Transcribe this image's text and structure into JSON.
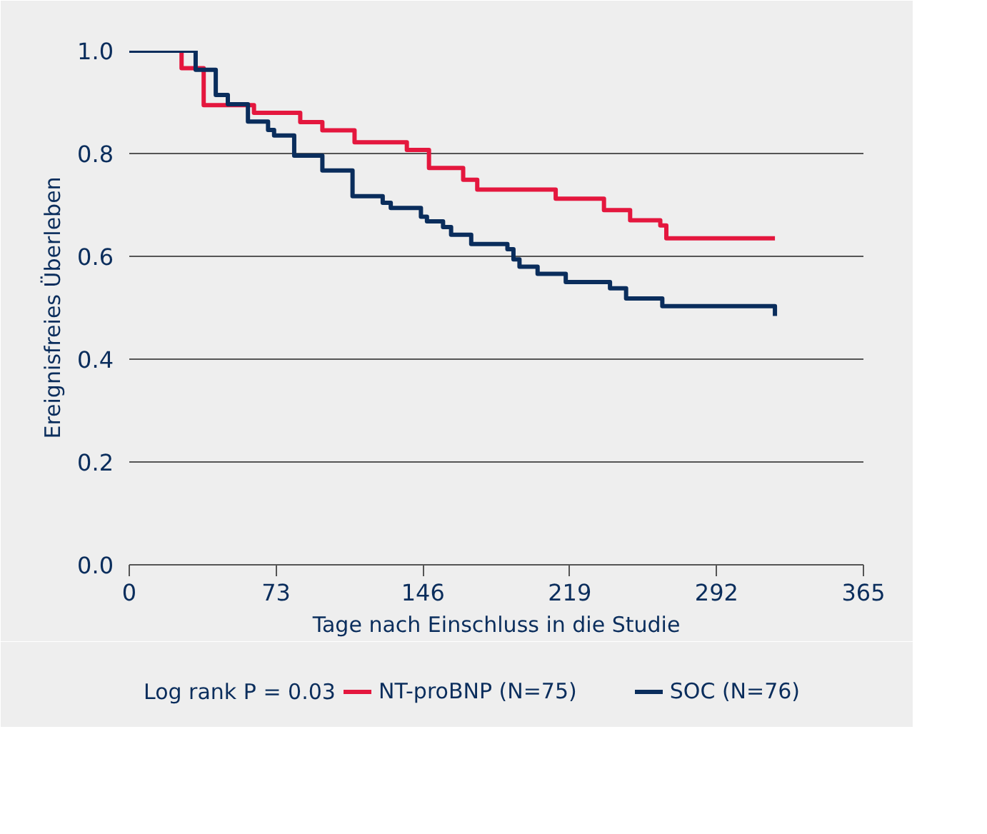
{
  "chart_data": {
    "type": "step",
    "xlabel": "Tage nach Einschluss in die Studie",
    "ylabel": "Ereignisfreies Überleben",
    "xlim": [
      0,
      365
    ],
    "xticks": [
      0,
      73,
      146,
      219,
      292,
      365
    ],
    "ylim": [
      0,
      1.0
    ],
    "yticks": [
      {
        "value": 0,
        "label": "0.0"
      },
      {
        "value": 0.2,
        "label": "0.2"
      },
      {
        "value": 0.4,
        "label": "0.4"
      },
      {
        "value": 0.6,
        "label": "0.6"
      },
      {
        "value": 0.8,
        "label": "0.8"
      },
      {
        "value": 1.0,
        "label": "1.0"
      }
    ],
    "grid": "y",
    "legend": "bottom",
    "line_style": "solid",
    "marker": "none",
    "annotations": [
      "Log rank P = 0.03"
    ],
    "series": [
      {
        "name": "NT-proBNP (N=75)",
        "color": "#e4173e",
        "x": [
          0,
          26,
          37,
          62,
          85,
          96,
          112,
          138,
          149,
          166,
          173,
          212,
          236,
          249,
          264,
          267,
          321
        ],
        "values": [
          1.0,
          0.966,
          0.894,
          0.879,
          0.861,
          0.845,
          0.822,
          0.807,
          0.772,
          0.749,
          0.73,
          0.712,
          0.69,
          0.67,
          0.66,
          0.635,
          0.635
        ]
      },
      {
        "name": "SOC (N=76)",
        "color": "#0a2d5c",
        "x": [
          0,
          33,
          43,
          49,
          59,
          69,
          72,
          82,
          96,
          111,
          126,
          130,
          145,
          148,
          156,
          160,
          170,
          188,
          191,
          194,
          203,
          217,
          239,
          247,
          265,
          320,
          321
        ],
        "values": [
          1.0,
          0.963,
          0.914,
          0.896,
          0.862,
          0.846,
          0.835,
          0.796,
          0.767,
          0.717,
          0.704,
          0.694,
          0.677,
          0.668,
          0.657,
          0.642,
          0.624,
          0.614,
          0.594,
          0.58,
          0.566,
          0.55,
          0.538,
          0.518,
          0.503,
          0.503,
          0.484
        ]
      }
    ]
  }
}
